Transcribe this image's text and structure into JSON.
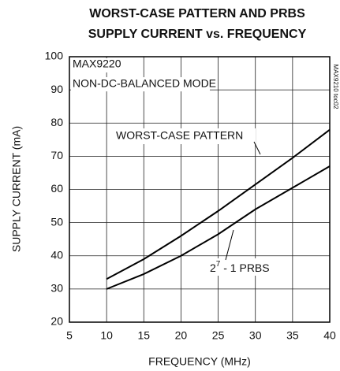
{
  "chart_data": {
    "type": "line",
    "title_lines": [
      "WORST-CASE PATTERN AND PRBS",
      "SUPPLY CURRENT vs. FREQUENCY"
    ],
    "x_label": "FREQUENCY (MHz)",
    "y_label": "SUPPLY CURRENT (mA)",
    "annotations": [
      "MAX9220",
      "NON-DC-BALANCED MODE"
    ],
    "side_note": "MAX9210 toc02",
    "x": [
      10,
      15,
      20,
      25,
      30,
      35,
      40
    ],
    "series": [
      {
        "name": "WORST-CASE PATTERN",
        "color": "#000000",
        "values": [
          33,
          39,
          46,
          53.5,
          61.5,
          69.5,
          78
        ]
      },
      {
        "label_parts": [
          "2",
          "7",
          " - 1 PRBS"
        ],
        "color": "#000000",
        "values": [
          30,
          34.5,
          40,
          46.5,
          54,
          60.5,
          67
        ]
      }
    ],
    "xlim": [
      5,
      40
    ],
    "xticks": [
      5,
      10,
      15,
      20,
      25,
      30,
      35,
      40
    ],
    "ylim": [
      20,
      100
    ],
    "yticks": [
      20,
      30,
      40,
      50,
      60,
      70,
      80,
      90,
      100
    ],
    "grid": true
  }
}
